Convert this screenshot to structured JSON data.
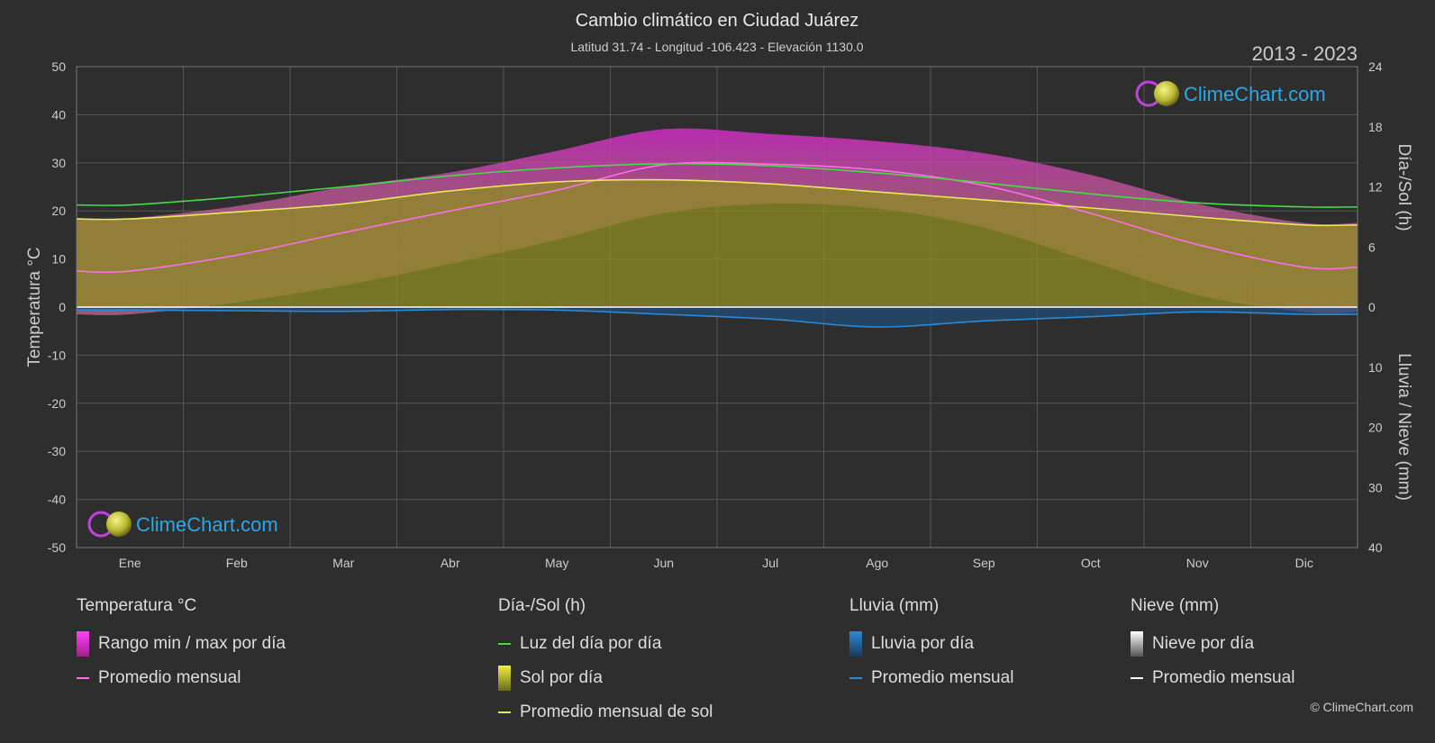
{
  "header": {
    "title": "Cambio climático en Ciudad Juárez",
    "subtitle": "Latitud 31.74 - Longitud -106.423 - Elevación 1130.0",
    "years": "2013 - 2023"
  },
  "brand": {
    "text": "ClimeChart.com",
    "copyright": "© ClimeChart.com"
  },
  "chart_data": {
    "type": "area",
    "categories": [
      "Ene",
      "Feb",
      "Mar",
      "Abr",
      "May",
      "Jun",
      "Jul",
      "Ago",
      "Sep",
      "Oct",
      "Nov",
      "Dic"
    ],
    "left_axis": {
      "label": "Temperatura °C",
      "range": [
        -50,
        50
      ],
      "ticks": [
        50,
        40,
        30,
        20,
        10,
        0,
        -10,
        -20,
        -30,
        -40,
        -50
      ]
    },
    "right_axis_top": {
      "label": "Día-/Sol (h)",
      "range": [
        0,
        24
      ],
      "ticks": [
        24,
        18,
        12,
        6,
        0
      ]
    },
    "right_axis_bottom": {
      "label": "Lluvia / Nieve (mm)",
      "range": [
        0,
        40
      ],
      "ticks": [
        10,
        20,
        30,
        40
      ]
    },
    "grid": true,
    "series": [
      {
        "name": "Promedio mensual",
        "group": "Temperatura °C",
        "unit": "°C",
        "color": "#ff6ee6",
        "values": [
          7.5,
          10.8,
          15.5,
          20.0,
          24.3,
          29.6,
          29.7,
          28.5,
          25.3,
          19.5,
          13.0,
          8.3
        ]
      },
      {
        "name": "Luz del día por día",
        "group": "Día-/Sol (h)",
        "unit": "h",
        "color": "#44dd44",
        "values": [
          10.2,
          11.0,
          12.0,
          13.1,
          13.9,
          14.3,
          14.1,
          13.4,
          12.4,
          11.3,
          10.4,
          10.0
        ]
      },
      {
        "name": "Promedio mensual de sol",
        "group": "Día-/Sol (h)",
        "unit": "h",
        "color": "#e8e85a",
        "values": [
          8.8,
          9.5,
          10.3,
          11.6,
          12.5,
          12.7,
          12.3,
          11.5,
          10.7,
          9.9,
          9.0,
          8.2
        ]
      },
      {
        "name": "Promedio mensual",
        "group": "Lluvia (mm)",
        "unit": "mm",
        "color": "#2a8ad8",
        "values": [
          0.5,
          0.6,
          0.7,
          0.4,
          0.5,
          1.2,
          2.0,
          3.3,
          2.3,
          1.6,
          0.8,
          1.2
        ]
      },
      {
        "name": "Promedio mensual",
        "group": "Nieve (mm)",
        "unit": "mm",
        "color": "#ffffff",
        "values": [
          0,
          0,
          0,
          0,
          0,
          0,
          0,
          0,
          0,
          0,
          0,
          0
        ]
      }
    ],
    "temperature_range": {
      "name": "Rango min / max por día",
      "min": [
        -1.5,
        1.0,
        4.5,
        9.0,
        14.0,
        19.5,
        21.5,
        20.5,
        16.5,
        9.5,
        2.5,
        -1.0
      ],
      "max": [
        18.5,
        21.0,
        25.0,
        28.0,
        32.5,
        37.0,
        36.0,
        34.5,
        32.0,
        27.5,
        21.5,
        17.5
      ]
    }
  },
  "legend": {
    "temperature": {
      "title": "Temperatura °C",
      "range": "Rango min / max por día",
      "avg": "Promedio mensual"
    },
    "sun": {
      "title": "Día-/Sol (h)",
      "daylight": "Luz del día por día",
      "sun": "Sol por día",
      "avg": "Promedio mensual de sol"
    },
    "rain": {
      "title": "Lluvia (mm)",
      "daily": "Lluvia por día",
      "avg": "Promedio mensual"
    },
    "snow": {
      "title": "Nieve (mm)",
      "daily": "Nieve por día",
      "avg": "Promedio mensual"
    }
  }
}
